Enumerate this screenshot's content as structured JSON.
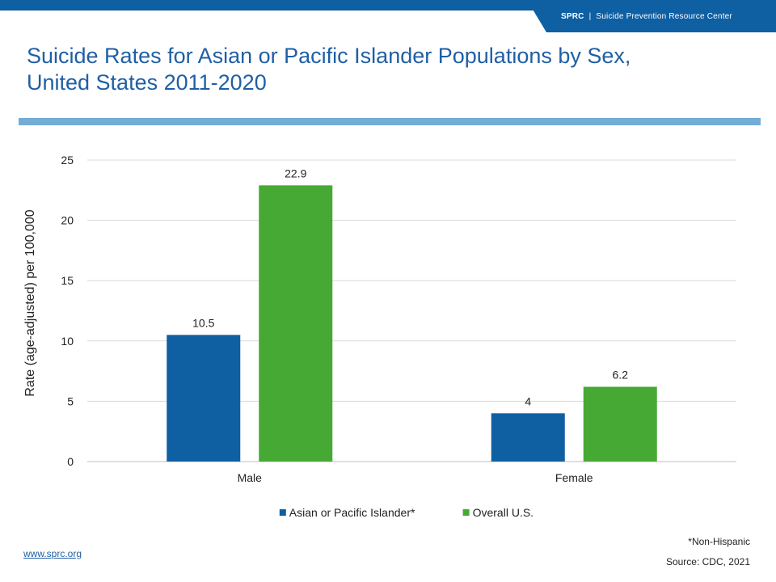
{
  "header": {
    "brand_abbr": "SPRC",
    "separator": "|",
    "brand_name": "Suicide Prevention Resource Center",
    "brand_color": "#0f5fa3"
  },
  "title": {
    "line1": "Suicide Rates for Asian or Pacific Islander Populations by Sex,",
    "line2": "United States 2011-2020"
  },
  "footer": {
    "note": "*Non-Hispanic",
    "source": "Source: CDC, 2021",
    "link": "www.sprc.org"
  },
  "chart_data": {
    "type": "bar",
    "title": "Suicide Rates for Asian or Pacific Islander Populations by Sex, United States 2011-2020",
    "xlabel": "",
    "ylabel": "Rate (age-adjusted) per 100,000",
    "categories": [
      "Male",
      "Female"
    ],
    "series": [
      {
        "name": "Asian or Pacific Islander*",
        "values": [
          10.5,
          4
        ],
        "labels": [
          "10.5",
          "4"
        ],
        "color": "#0f5fa3"
      },
      {
        "name": "Overall U.S.",
        "values": [
          22.9,
          6.2
        ],
        "labels": [
          "22.9",
          "6.2"
        ],
        "color": "#46a934"
      }
    ],
    "ylim": [
      0,
      25
    ],
    "yticks": [
      0,
      5,
      10,
      15,
      20,
      25
    ],
    "grid": true,
    "legend": "bottom"
  }
}
